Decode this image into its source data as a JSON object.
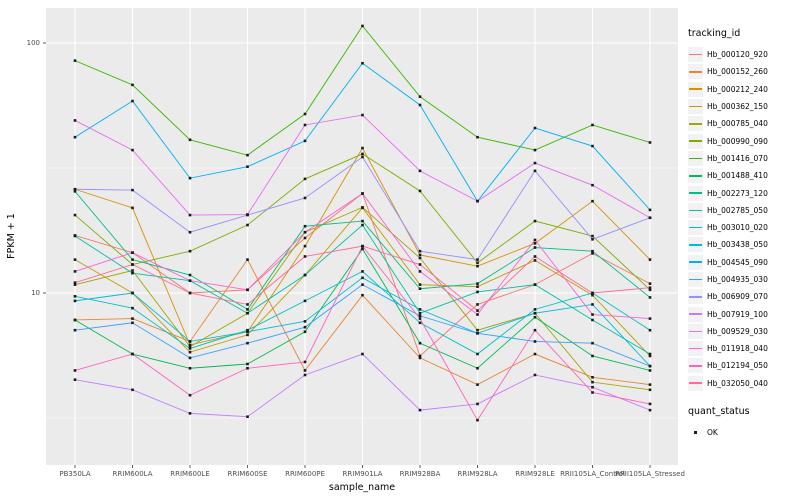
{
  "page": {
    "background": "#FFFFFF",
    "panel_background": "#EBEBEB",
    "grid_color": "#FFFFFF",
    "tick_text_color": "#4D4D4D",
    "point_color": "#1A1A1A"
  },
  "chart_data": {
    "type": "line",
    "title": "",
    "xlabel": "sample_name",
    "ylabel": "FPKM + 1",
    "y_scale": "log10",
    "y_ticks": [
      10,
      100
    ],
    "y_minor_ticks": [
      3.162,
      31.623,
      316.228
    ],
    "ylim_approx": [
      2.0,
      140
    ],
    "grid": "on",
    "legend_position": "right",
    "legend_title": "tracking_id",
    "quant_legend": {
      "title": "quant_status",
      "items": [
        {
          "label": "OK",
          "marker": "black-square"
        }
      ]
    },
    "categories": [
      "PB350LA",
      "RRIM600LA",
      "RRIM600LE",
      "RRIM600SE",
      "RRIM600PE",
      "RRIM901LA",
      "RRIM928BA",
      "RRIM928LA",
      "RRIM928LE",
      "RRII105LA_Control",
      "RRII105LA_Stressed"
    ],
    "series": [
      {
        "name": "Hb_000120_920",
        "color": "#F8766D",
        "values": [
          17.0,
          14.5,
          10.0,
          10.3,
          16.6,
          25.0,
          5.6,
          9.0,
          10.8,
          14.4,
          10.9
        ]
      },
      {
        "name": "Hb_000152_260",
        "color": "#EA8331",
        "values": [
          7.8,
          7.9,
          6.4,
          13.6,
          4.9,
          9.8,
          5.5,
          4.3,
          5.7,
          4.6,
          4.3
        ]
      },
      {
        "name": "Hb_000212_240",
        "color": "#D89000",
        "values": [
          26.0,
          21.9,
          6.2,
          7.0,
          15.4,
          38.0,
          14.2,
          12.8,
          15.8,
          23.3,
          13.6
        ]
      },
      {
        "name": "Hb_000362_150",
        "color": "#C09B00",
        "values": [
          13.6,
          10.0,
          5.8,
          6.8,
          11.8,
          21.9,
          10.8,
          10.6,
          13.5,
          9.8,
          5.6
        ]
      },
      {
        "name": "Hb_000785_040",
        "color": "#A3A500",
        "values": [
          10.8,
          12.3,
          6.1,
          8.3,
          17.5,
          22.0,
          13.8,
          7.1,
          8.3,
          4.4,
          4.1
        ]
      },
      {
        "name": "Hb_000990_090",
        "color": "#7CAE00",
        "values": [
          20.5,
          13.0,
          14.7,
          18.7,
          28.6,
          36.0,
          25.6,
          13.2,
          19.4,
          16.9,
          10.3
        ]
      },
      {
        "name": "Hb_001416_070",
        "color": "#39B600",
        "values": [
          85.0,
          68.0,
          41.0,
          35.6,
          52.0,
          117.0,
          61.0,
          42.0,
          37.3,
          47.0,
          40.0
        ]
      },
      {
        "name": "Hb_001488_410",
        "color": "#00BB4E",
        "values": [
          7.8,
          5.7,
          5.0,
          5.2,
          7.0,
          15.0,
          6.3,
          5.0,
          8.0,
          5.6,
          4.9
        ]
      },
      {
        "name": "Hb_002273_120",
        "color": "#00BF7D",
        "values": [
          25.5,
          13.6,
          11.8,
          8.6,
          18.5,
          19.4,
          10.4,
          10.9,
          15.2,
          14.7,
          9.6
        ]
      },
      {
        "name": "Hb_002785_050",
        "color": "#00C1A3",
        "values": [
          16.9,
          12.0,
          11.2,
          8.3,
          11.8,
          18.7,
          8.3,
          10.1,
          10.8,
          7.8,
          5.7
        ]
      },
      {
        "name": "Hb_003010_020",
        "color": "#00BFC4",
        "values": [
          9.7,
          8.7,
          6.0,
          7.1,
          9.3,
          12.2,
          7.6,
          5.7,
          8.6,
          10.0,
          7.1
        ]
      },
      {
        "name": "Hb_003438_050",
        "color": "#00BAE0",
        "values": [
          9.3,
          10.0,
          6.4,
          7.0,
          7.7,
          11.5,
          8.6,
          6.9,
          8.3,
          9.0,
          5.1
        ]
      },
      {
        "name": "Hb_004545_090",
        "color": "#00B0F6",
        "values": [
          42.0,
          58.6,
          28.8,
          32.0,
          40.6,
          83.0,
          56.5,
          23.3,
          45.7,
          38.7,
          21.5
        ]
      },
      {
        "name": "Hb_004935_030",
        "color": "#35A2FF",
        "values": [
          7.1,
          7.6,
          5.5,
          6.3,
          7.3,
          10.8,
          8.1,
          6.9,
          6.4,
          6.3,
          5.1
        ]
      },
      {
        "name": "Hb_006909_070",
        "color": "#9590FF",
        "values": [
          26.0,
          25.8,
          17.5,
          20.5,
          24.0,
          35.0,
          14.7,
          13.6,
          30.8,
          16.4,
          20.0
        ]
      },
      {
        "name": "Hb_007919_100",
        "color": "#C77CFF",
        "values": [
          4.5,
          4.1,
          3.3,
          3.2,
          4.7,
          5.7,
          3.4,
          3.6,
          4.7,
          4.2,
          3.4
        ]
      },
      {
        "name": "Hb_009529_030",
        "color": "#E76BF3",
        "values": [
          49.0,
          37.3,
          20.5,
          20.6,
          47.0,
          51.5,
          30.8,
          23.3,
          33.1,
          27.0,
          20.0
        ]
      },
      {
        "name": "Hb_011918_040",
        "color": "#FA62DB",
        "values": [
          12.2,
          14.5,
          11.2,
          10.3,
          17.5,
          25.0,
          12.2,
          8.2,
          16.3,
          8.2,
          7.9
        ]
      },
      {
        "name": "Hb_012194_050",
        "color": "#FF62BC",
        "values": [
          4.9,
          5.7,
          3.9,
          5.0,
          5.3,
          15.4,
          7.9,
          3.1,
          7.1,
          4.0,
          3.6
        ]
      },
      {
        "name": "Hb_032050_040",
        "color": "#FF6A98",
        "values": [
          11.0,
          13.0,
          10.0,
          9.0,
          14.0,
          15.4,
          13.0,
          8.5,
          14.0,
          10.0,
          10.5
        ]
      }
    ]
  }
}
